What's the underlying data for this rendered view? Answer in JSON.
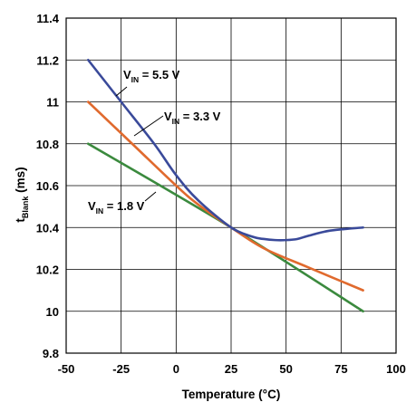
{
  "chart_data": {
    "type": "line",
    "xlabel": "Temperature (°C)",
    "ylabel_main": "t",
    "ylabel_sub": "Blank",
    "ylabel_rest": " (ms)",
    "xlim": [
      -50,
      100
    ],
    "ylim": [
      9.8,
      11.4
    ],
    "xticks": [
      "-50",
      "-25",
      "0",
      "25",
      "50",
      "75",
      "100"
    ],
    "yticks": [
      "9.8",
      "10",
      "10.2",
      "10.4",
      "10.6",
      "10.8",
      "11",
      "11.2",
      "11.4"
    ],
    "grid": true,
    "series": [
      {
        "name": "V_IN = 5.5 V",
        "label_main": "V",
        "label_sub": "IN",
        "label_rest": " = 5.5 V",
        "color": "#3a4a9a",
        "x": [
          -40,
          -25,
          -10,
          0,
          10,
          25,
          35,
          40,
          45,
          50,
          55,
          60,
          70,
          85
        ],
        "y": [
          11.2,
          11.0,
          10.8,
          10.65,
          10.53,
          10.4,
          10.355,
          10.345,
          10.34,
          10.34,
          10.345,
          10.36,
          10.385,
          10.4
        ]
      },
      {
        "name": "V_IN = 3.3 V",
        "label_main": "V",
        "label_sub": "IN",
        "label_rest": " = 3.3 V",
        "color": "#e06a2e",
        "x": [
          -40,
          -20,
          0,
          10,
          25,
          40,
          60,
          85
        ],
        "y": [
          11.0,
          10.8,
          10.6,
          10.51,
          10.4,
          10.3,
          10.21,
          10.1
        ]
      },
      {
        "name": "V_IN = 1.8 V",
        "label_main": "V",
        "label_sub": "IN",
        "label_rest": " = 1.8 V",
        "color": "#3b8a3e",
        "x": [
          -40,
          25,
          85
        ],
        "y": [
          10.8,
          10.4,
          10.0
        ]
      }
    ]
  }
}
